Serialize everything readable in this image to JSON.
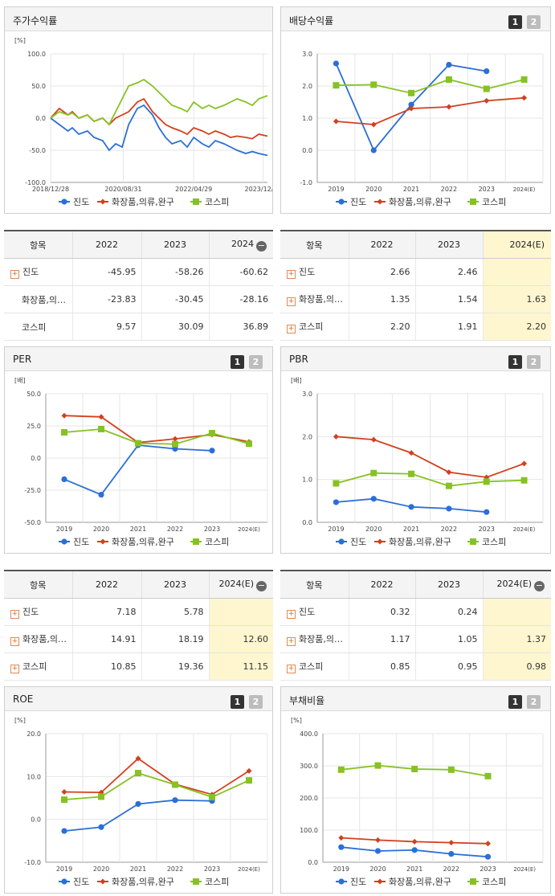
{
  "colors": {
    "s1": "#2b6fd6",
    "s2": "#d2401e",
    "s3": "#86c221",
    "grid": "#e6e6e6",
    "axis": "#999999"
  },
  "stock": {
    "title": "주가수익률",
    "unit": "[%]",
    "chart_data": {
      "type": "line",
      "title": "주가수익률",
      "ylabel": "[%]",
      "ylim": [
        -100,
        100
      ],
      "yticks": [
        "100.0",
        "50.0",
        "0.0",
        "-50.0",
        "-100.0"
      ],
      "xticks": [
        "2018/12/28",
        "2020/08/31",
        "2022/04/29",
        "2023/12/28"
      ],
      "x": [
        0,
        4,
        8,
        10,
        13,
        17,
        20,
        24,
        27,
        30,
        33,
        36,
        40,
        43,
        47,
        50,
        53,
        56,
        60,
        63,
        66,
        70,
        73,
        76,
        80,
        83,
        86,
        90,
        93,
        96,
        100
      ],
      "series": [
        {
          "name": "진도",
          "values": [
            0,
            -10,
            -20,
            -15,
            -25,
            -20,
            -30,
            -35,
            -50,
            -40,
            -45,
            -10,
            15,
            20,
            5,
            -15,
            -30,
            -40,
            -35,
            -45,
            -30,
            -40,
            -45,
            -35,
            -40,
            -45,
            -50,
            -55,
            -52,
            -55,
            -58
          ]
        },
        {
          "name": "화장품,의류,완구",
          "values": [
            0,
            15,
            5,
            10,
            0,
            5,
            -5,
            0,
            -10,
            0,
            5,
            10,
            25,
            30,
            10,
            0,
            -10,
            -15,
            -20,
            -25,
            -15,
            -20,
            -25,
            -20,
            -25,
            -30,
            -28,
            -30,
            -32,
            -25,
            -28
          ]
        },
        {
          "name": "코스피",
          "values": [
            0,
            10,
            5,
            8,
            0,
            5,
            -5,
            0,
            -10,
            10,
            30,
            50,
            55,
            60,
            50,
            40,
            30,
            20,
            15,
            10,
            25,
            15,
            20,
            15,
            20,
            25,
            30,
            25,
            20,
            30,
            35
          ]
        }
      ]
    }
  },
  "dividend": {
    "title": "배당수익률",
    "btn1": "1",
    "btn2": "2",
    "chart_data": {
      "type": "line",
      "title": "배당수익률",
      "categories": [
        "2019",
        "2020",
        "2021",
        "2022",
        "2023",
        "2024(E)"
      ],
      "ylim": [
        -1,
        3
      ],
      "yticks": [
        "3.0",
        "2.0",
        "1.0",
        "0.0",
        "-1.0"
      ],
      "series": [
        {
          "name": "진도",
          "values": [
            2.7,
            0.0,
            1.42,
            2.66,
            2.46,
            null
          ]
        },
        {
          "name": "화장품,의류,완구",
          "values": [
            0.9,
            0.8,
            1.3,
            1.35,
            1.54,
            1.63
          ]
        },
        {
          "name": "코스피",
          "values": [
            2.02,
            2.04,
            1.78,
            2.2,
            1.91,
            2.2
          ]
        }
      ]
    }
  },
  "per": {
    "title": "PER",
    "unit": "[배]",
    "btn1": "1",
    "btn2": "2",
    "chart_data": {
      "type": "line",
      "title": "PER",
      "ylabel": "[배]",
      "categories": [
        "2019",
        "2020",
        "2021",
        "2022",
        "2023",
        "2024(E)"
      ],
      "ylim": [
        -50,
        50
      ],
      "yticks": [
        "50.0",
        "25.0",
        "0.0",
        "-25.0",
        "-50.0"
      ],
      "series": [
        {
          "name": "진도",
          "values": [
            -16.5,
            -28.5,
            10.0,
            7.18,
            5.78,
            null
          ]
        },
        {
          "name": "화장품,의류,완구",
          "values": [
            33.0,
            32.0,
            12.0,
            14.91,
            18.19,
            12.6
          ]
        },
        {
          "name": "코스피",
          "values": [
            20.0,
            22.5,
            11.5,
            10.85,
            19.36,
            11.15
          ]
        }
      ]
    }
  },
  "pbr": {
    "title": "PBR",
    "unit": "[배]",
    "btn1": "1",
    "btn2": "2",
    "chart_data": {
      "type": "line",
      "title": "PBR",
      "ylabel": "[배]",
      "categories": [
        "2019",
        "2020",
        "2021",
        "2022",
        "2023",
        "2024(E)"
      ],
      "ylim": [
        0,
        3
      ],
      "yticks": [
        "3.0",
        "2.0",
        "1.0",
        "0.0"
      ],
      "series": [
        {
          "name": "진도",
          "values": [
            0.47,
            0.55,
            0.36,
            0.32,
            0.24,
            null
          ]
        },
        {
          "name": "화장품,의류,완구",
          "values": [
            2.0,
            1.93,
            1.62,
            1.17,
            1.05,
            1.37
          ]
        },
        {
          "name": "코스피",
          "values": [
            0.91,
            1.15,
            1.13,
            0.85,
            0.95,
            0.98
          ]
        }
      ]
    }
  },
  "roe": {
    "title": "ROE",
    "unit": "[%]",
    "btn1": "1",
    "btn2": "2",
    "chart_data": {
      "type": "line",
      "title": "ROE",
      "ylabel": "[%]",
      "categories": [
        "2019",
        "2020",
        "2021",
        "2022",
        "2023",
        "2024(E)"
      ],
      "ylim": [
        -10,
        20
      ],
      "yticks": [
        "20.0",
        "10.0",
        "0.0",
        "-10.0"
      ],
      "series": [
        {
          "name": "진도",
          "values": [
            -2.7,
            -1.8,
            3.6,
            4.5,
            4.3,
            null
          ]
        },
        {
          "name": "화장품,의류,완구",
          "values": [
            6.4,
            6.3,
            14.2,
            8.2,
            5.8,
            11.3
          ]
        },
        {
          "name": "코스피",
          "values": [
            4.6,
            5.3,
            10.8,
            8.1,
            5.2,
            9.1
          ]
        }
      ]
    }
  },
  "debt": {
    "title": "부채비율",
    "unit": "[%]",
    "btn1": "1",
    "btn2": "2",
    "chart_data": {
      "type": "line",
      "title": "부채비율",
      "ylabel": "[%]",
      "categories": [
        "2019",
        "2020",
        "2021",
        "2022",
        "2023",
        "2024(E)"
      ],
      "ylim": [
        0,
        400
      ],
      "yticks": [
        "400.0",
        "300.0",
        "200.0",
        "100.0",
        "0.0"
      ],
      "series": [
        {
          "name": "진도",
          "values": [
            47,
            35,
            38,
            26,
            17,
            null
          ]
        },
        {
          "name": "화장품,의류,완구",
          "values": [
            76,
            69,
            64,
            61,
            58,
            null
          ]
        },
        {
          "name": "코스피",
          "values": [
            288,
            301,
            290,
            288,
            268,
            null
          ]
        }
      ]
    }
  },
  "legend": [
    "진도",
    "화장품,의류,완구",
    "코스피"
  ],
  "tables": {
    "stock": {
      "head": [
        "항목",
        "2022",
        "2023",
        "2024"
      ],
      "rows": [
        {
          "name": "진도",
          "plus": true,
          "v": [
            "-45.95",
            "-58.26",
            "-60.62"
          ]
        },
        {
          "name": "화장품,의…",
          "plus": false,
          "v": [
            "-23.83",
            "-30.45",
            "-28.16"
          ]
        },
        {
          "name": "코스피",
          "plus": false,
          "v": [
            "9.57",
            "30.09",
            "36.89"
          ]
        }
      ]
    },
    "dividend": {
      "head": [
        "항목",
        "2022",
        "2023",
        "2024(E)"
      ],
      "rows": [
        {
          "name": "진도",
          "plus": true,
          "v": [
            "2.66",
            "2.46",
            ""
          ]
        },
        {
          "name": "화장품,의…",
          "plus": true,
          "v": [
            "1.35",
            "1.54",
            "1.63"
          ]
        },
        {
          "name": "코스피",
          "plus": true,
          "v": [
            "2.20",
            "1.91",
            "2.20"
          ]
        }
      ]
    },
    "per": {
      "head": [
        "항목",
        "2022",
        "2023",
        "2024(E)"
      ],
      "rows": [
        {
          "name": "진도",
          "plus": true,
          "v": [
            "7.18",
            "5.78",
            ""
          ]
        },
        {
          "name": "화장품,의…",
          "plus": true,
          "v": [
            "14.91",
            "18.19",
            "12.60"
          ]
        },
        {
          "name": "코스피",
          "plus": true,
          "v": [
            "10.85",
            "19.36",
            "11.15"
          ]
        }
      ]
    },
    "pbr": {
      "head": [
        "항목",
        "2022",
        "2023",
        "2024(E)"
      ],
      "rows": [
        {
          "name": "진도",
          "plus": true,
          "v": [
            "0.32",
            "0.24",
            ""
          ]
        },
        {
          "name": "화장품,의…",
          "plus": true,
          "v": [
            "1.17",
            "1.05",
            "1.37"
          ]
        },
        {
          "name": "코스피",
          "plus": true,
          "v": [
            "0.85",
            "0.95",
            "0.98"
          ]
        }
      ]
    }
  }
}
